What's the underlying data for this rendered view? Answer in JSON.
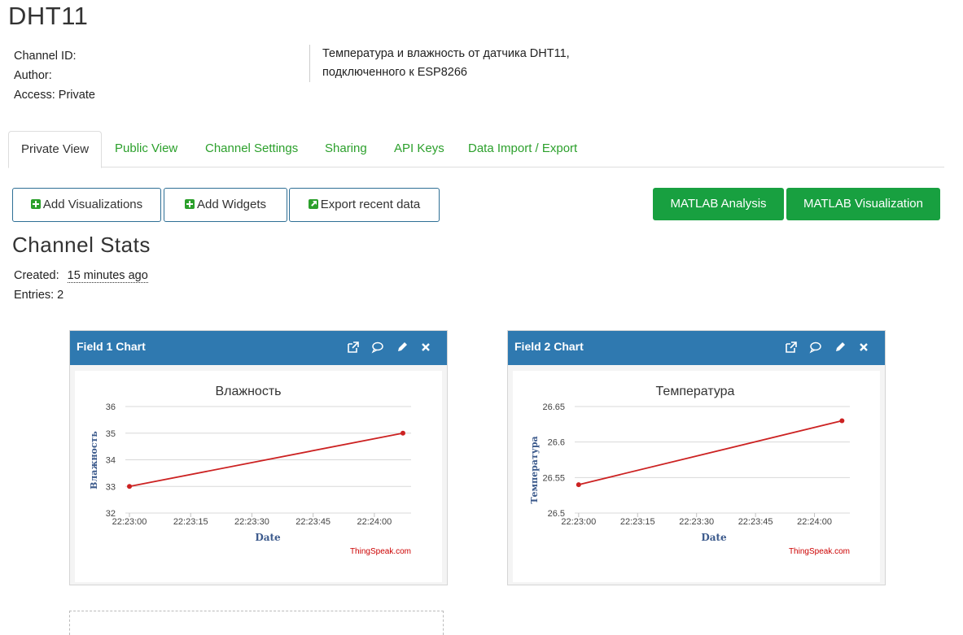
{
  "channel": {
    "title": "DHT11",
    "meta": {
      "channel_id_label": "Channel ID:",
      "author_label": "Author:",
      "access": "Access: Private"
    },
    "description_line1": "Температура и влажность от датчика DHT11,",
    "description_line2": "подключенного к ESP8266"
  },
  "tabs": [
    {
      "label": "Private View",
      "active": true
    },
    {
      "label": "Public View"
    },
    {
      "label": "Channel Settings"
    },
    {
      "label": "Sharing"
    },
    {
      "label": "API Keys"
    },
    {
      "label": "Data Import / Export"
    }
  ],
  "toolbar": {
    "add_visualizations": "Add Visualizations",
    "add_widgets": "Add Widgets",
    "export_recent": "Export recent data",
    "matlab_analysis": "MATLAB Analysis",
    "matlab_visualization": "MATLAB Visualization"
  },
  "stats": {
    "title": "Channel Stats",
    "created_label": "Created:",
    "created_value": "15 minutes ago",
    "entries": "Entries: 2"
  },
  "colors": {
    "accent_green": "#2ca02c",
    "button_green": "#18a040",
    "panel_header": "#2f79b0",
    "series_line": "#cc2222",
    "axis_title": "#3c5a8c"
  },
  "panels": [
    {
      "title": "Field 1 Chart",
      "icons": [
        "external-link-icon",
        "comment-icon",
        "pencil-icon",
        "close-icon"
      ]
    },
    {
      "title": "Field 2 Chart",
      "icons": [
        "external-link-icon",
        "comment-icon",
        "pencil-icon",
        "close-icon"
      ]
    }
  ],
  "chart_data": [
    {
      "type": "line",
      "title": "Влажность",
      "xlabel": "Date",
      "ylabel": "Влажность",
      "credit": "ThingSpeak.com",
      "x_ticks": [
        "22:23:00",
        "22:23:15",
        "22:23:30",
        "22:23:45",
        "22:24:00"
      ],
      "x_tick_seconds": [
        0,
        15,
        30,
        45,
        60
      ],
      "x_range_seconds": [
        -1,
        69
      ],
      "y_ticks": [
        "36",
        "35",
        "34",
        "33",
        "32"
      ],
      "ylim": [
        32,
        36
      ],
      "grid": true,
      "series": [
        {
          "x_seconds": [
            0,
            67
          ],
          "values": [
            33,
            35
          ]
        }
      ]
    },
    {
      "type": "line",
      "title": "Температура",
      "xlabel": "Date",
      "ylabel": "Температура",
      "credit": "ThingSpeak.com",
      "x_ticks": [
        "22:23:00",
        "22:23:15",
        "22:23:30",
        "22:23:45",
        "22:24:00"
      ],
      "x_tick_seconds": [
        0,
        15,
        30,
        45,
        60
      ],
      "x_range_seconds": [
        -1,
        69
      ],
      "y_ticks": [
        "26.65",
        "26.6",
        "26.55",
        "26.5"
      ],
      "ylim": [
        26.5,
        26.65
      ],
      "grid": true,
      "series": [
        {
          "x_seconds": [
            0,
            67
          ],
          "values": [
            26.54,
            26.63
          ]
        }
      ]
    }
  ]
}
